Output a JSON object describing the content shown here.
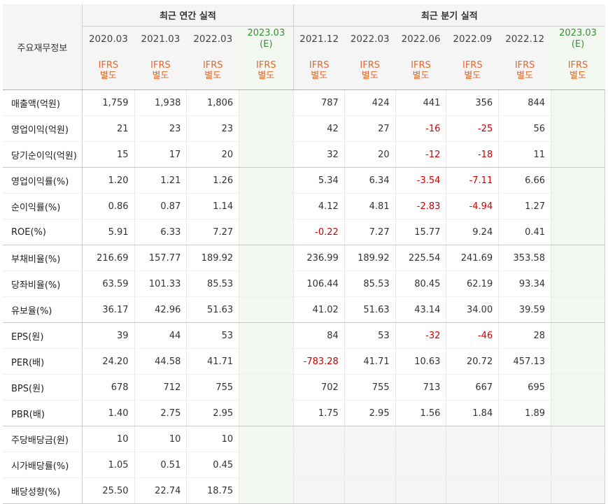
{
  "header": {
    "corner_label": "주요재무정보",
    "annual_group": "최근 연간 실적",
    "quarterly_group": "최근 분기 실적",
    "standard_label_line1": "IFRS",
    "standard_label_line2": "별도",
    "estimate_marker": "(E)"
  },
  "periods": [
    {
      "label": "2020.03",
      "estimate": false
    },
    {
      "label": "2021.03",
      "estimate": false
    },
    {
      "label": "2022.03",
      "estimate": false
    },
    {
      "label": "2023.03",
      "estimate": true
    },
    {
      "label": "2021.12",
      "estimate": false
    },
    {
      "label": "2022.03",
      "estimate": false
    },
    {
      "label": "2022.06",
      "estimate": false
    },
    {
      "label": "2022.09",
      "estimate": false
    },
    {
      "label": "2022.12",
      "estimate": false
    },
    {
      "label": "2023.03",
      "estimate": true
    }
  ],
  "groups": [
    {
      "rows": [
        {
          "label": "매출액(억원)",
          "values": [
            "1,759",
            "1,938",
            "1,806",
            "",
            "787",
            "424",
            "441",
            "356",
            "844",
            ""
          ]
        },
        {
          "label": "영업이익(억원)",
          "values": [
            "21",
            "23",
            "23",
            "",
            "42",
            "27",
            "-16",
            "-25",
            "56",
            ""
          ]
        },
        {
          "label": "당기순이익(억원)",
          "values": [
            "15",
            "17",
            "20",
            "",
            "32",
            "20",
            "-12",
            "-18",
            "11",
            ""
          ]
        }
      ]
    },
    {
      "rows": [
        {
          "label": "영업이익률(%)",
          "values": [
            "1.20",
            "1.21",
            "1.26",
            "",
            "5.34",
            "6.34",
            "-3.54",
            "-7.11",
            "6.66",
            ""
          ]
        },
        {
          "label": "순이익률(%)",
          "values": [
            "0.86",
            "0.87",
            "1.14",
            "",
            "4.12",
            "4.81",
            "-2.83",
            "-4.94",
            "1.27",
            ""
          ]
        },
        {
          "label": "ROE(%)",
          "values": [
            "5.91",
            "6.33",
            "7.27",
            "",
            "-0.22",
            "7.27",
            "15.77",
            "9.24",
            "0.41",
            ""
          ]
        }
      ]
    },
    {
      "rows": [
        {
          "label": "부채비율(%)",
          "values": [
            "216.69",
            "157.77",
            "189.92",
            "",
            "236.99",
            "189.92",
            "225.54",
            "241.69",
            "353.58",
            ""
          ]
        },
        {
          "label": "당좌비율(%)",
          "values": [
            "63.59",
            "101.33",
            "85.53",
            "",
            "106.44",
            "85.53",
            "80.45",
            "62.19",
            "93.34",
            ""
          ]
        },
        {
          "label": "유보율(%)",
          "values": [
            "36.17",
            "42.96",
            "51.63",
            "",
            "41.02",
            "51.63",
            "43.14",
            "34.00",
            "39.59",
            ""
          ]
        }
      ]
    },
    {
      "rows": [
        {
          "label": "EPS(원)",
          "values": [
            "39",
            "44",
            "53",
            "",
            "84",
            "53",
            "-32",
            "-46",
            "28",
            ""
          ]
        },
        {
          "label": "PER(배)",
          "values": [
            "24.20",
            "44.58",
            "41.71",
            "",
            "-783.28",
            "41.71",
            "10.63",
            "20.72",
            "457.13",
            ""
          ]
        },
        {
          "label": "BPS(원)",
          "values": [
            "678",
            "712",
            "755",
            "",
            "702",
            "755",
            "713",
            "667",
            "695",
            ""
          ]
        },
        {
          "label": "PBR(배)",
          "values": [
            "1.40",
            "2.75",
            "2.95",
            "",
            "1.75",
            "2.95",
            "1.56",
            "1.84",
            "1.89",
            ""
          ]
        }
      ]
    },
    {
      "quarterly_empty": true,
      "rows": [
        {
          "label": "주당배당금(원)",
          "values": [
            "10",
            "10",
            "10",
            "",
            "",
            "",
            "",
            "",
            "",
            ""
          ]
        },
        {
          "label": "시가배당률(%)",
          "values": [
            "1.05",
            "0.51",
            "0.45",
            "",
            "",
            "",
            "",
            "",
            "",
            ""
          ]
        },
        {
          "label": "배당성향(%)",
          "values": [
            "25.50",
            "22.74",
            "18.75",
            "",
            "",
            "",
            "",
            "",
            "",
            ""
          ]
        }
      ]
    }
  ]
}
